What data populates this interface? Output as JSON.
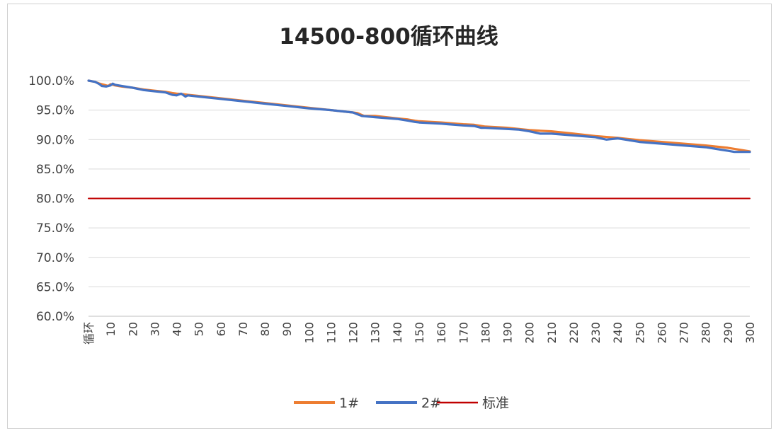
{
  "chart_data": {
    "type": "line",
    "title": "14500-800循环曲线",
    "xlabel": "",
    "ylabel": "",
    "x_first_label": "循环",
    "x_ticks": [
      10,
      20,
      30,
      40,
      50,
      60,
      70,
      80,
      90,
      100,
      110,
      120,
      130,
      140,
      150,
      160,
      170,
      180,
      190,
      200,
      210,
      220,
      230,
      240,
      250,
      260,
      270,
      280,
      290,
      300
    ],
    "xlim": [
      0,
      300
    ],
    "ylim": [
      60,
      100
    ],
    "y_ticks": [
      "60.0%",
      "65.0%",
      "70.0%",
      "75.0%",
      "80.0%",
      "85.0%",
      "90.0%",
      "95.0%",
      "100.0%"
    ],
    "grid": true,
    "legend_position": "bottom",
    "series": [
      {
        "name": "1#",
        "color": "#ED7D31",
        "x": [
          0,
          3,
          5,
          7,
          9,
          10,
          12,
          15,
          20,
          25,
          30,
          35,
          38,
          40,
          43,
          45,
          50,
          60,
          70,
          80,
          90,
          100,
          110,
          120,
          122,
          125,
          130,
          140,
          145,
          148,
          150,
          160,
          170,
          175,
          180,
          190,
          200,
          205,
          210,
          220,
          230,
          240,
          250,
          260,
          270,
          280,
          290,
          300
        ],
        "values": [
          100.0,
          99.8,
          99.5,
          99.3,
          99.1,
          99.4,
          99.2,
          99.0,
          98.8,
          98.5,
          98.3,
          98.1,
          97.9,
          97.8,
          97.7,
          97.6,
          97.4,
          97.0,
          96.6,
          96.2,
          95.8,
          95.4,
          95.0,
          94.6,
          94.5,
          94.0,
          94.0,
          93.6,
          93.4,
          93.2,
          93.1,
          92.9,
          92.6,
          92.5,
          92.2,
          92.0,
          91.6,
          91.5,
          91.4,
          91.0,
          90.6,
          90.3,
          89.9,
          89.6,
          89.3,
          89.0,
          88.6,
          88.0
        ]
      },
      {
        "name": "2#",
        "color": "#4472C4",
        "x": [
          0,
          3,
          5,
          6,
          8,
          10,
          11,
          12,
          15,
          20,
          25,
          30,
          35,
          38,
          40,
          42,
          44,
          45,
          50,
          60,
          70,
          80,
          90,
          100,
          110,
          120,
          122,
          124,
          130,
          140,
          145,
          148,
          150,
          160,
          170,
          175,
          178,
          180,
          190,
          195,
          200,
          205,
          210,
          220,
          230,
          235,
          240,
          245,
          250,
          260,
          270,
          280,
          290,
          293,
          300
        ],
        "values": [
          100.0,
          99.8,
          99.4,
          99.1,
          99.0,
          99.2,
          99.5,
          99.3,
          99.1,
          98.8,
          98.4,
          98.2,
          98.0,
          97.6,
          97.5,
          97.8,
          97.3,
          97.5,
          97.3,
          96.9,
          96.5,
          96.1,
          95.7,
          95.3,
          95.0,
          94.6,
          94.3,
          94.0,
          93.8,
          93.5,
          93.2,
          93.0,
          92.9,
          92.7,
          92.4,
          92.3,
          92.0,
          92.0,
          91.8,
          91.7,
          91.4,
          91.0,
          91.0,
          90.7,
          90.4,
          90.0,
          90.2,
          89.9,
          89.6,
          89.3,
          89.0,
          88.7,
          88.1,
          87.9,
          87.9
        ]
      },
      {
        "name": "标准",
        "color": "#C00000",
        "x": [
          0,
          300
        ],
        "values": [
          80.0,
          80.0
        ]
      }
    ]
  }
}
